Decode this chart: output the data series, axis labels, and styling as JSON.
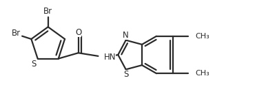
{
  "background": "#ffffff",
  "line_color": "#2a2a2a",
  "line_width": 1.6,
  "font_size": 8.5,
  "fig_width": 3.86,
  "fig_height": 1.27,
  "dpi": 100,
  "xlim": [
    0.0,
    7.8
  ],
  "ylim": [
    -0.5,
    2.2
  ]
}
